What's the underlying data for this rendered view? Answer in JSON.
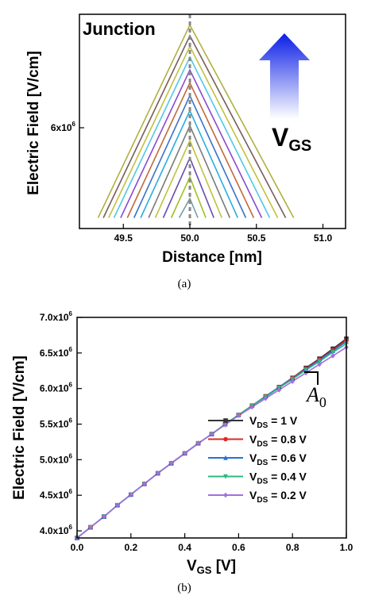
{
  "chart_data": [
    {
      "type": "line",
      "caption": "(a)",
      "annotation": "Junction",
      "arrow_label": "V",
      "arrow_label_sub": "GS",
      "xlabel": "Distance [nm]",
      "ylabel": "Electric Field [V/cm]",
      "xlim": [
        49.17,
        51.17
      ],
      "xticks": [
        "49.5",
        "50.0",
        "50.5",
        "51.0"
      ],
      "ytick_label": {
        "base": "6x10",
        "exp": "6"
      },
      "junction_x": 50.0,
      "series_colors": [
        "#6e9ea8",
        "#a0c020",
        "#6a4ab0",
        "#c0c040",
        "#7a7a7a",
        "#2aaedd",
        "#3a72c8",
        "#c06a3a",
        "#8a4ad0",
        "#50c8e8",
        "#c0c040",
        "#7a5a5a",
        "#b0b040"
      ],
      "series": [
        {
          "x": [
            49.92,
            50.0,
            50.06
          ],
          "y": [
            0.05,
            0.14,
            0.05
          ]
        },
        {
          "x": [
            49.86,
            50.0,
            50.12
          ],
          "y": [
            0.05,
            0.24,
            0.05
          ]
        },
        {
          "x": [
            49.8,
            50.0,
            50.18
          ],
          "y": [
            0.05,
            0.33,
            0.05
          ]
        },
        {
          "x": [
            49.74,
            50.0,
            50.24
          ],
          "y": [
            0.05,
            0.41,
            0.05
          ]
        },
        {
          "x": [
            49.69,
            50.0,
            50.3
          ],
          "y": [
            0.05,
            0.48,
            0.05
          ]
        },
        {
          "x": [
            49.63,
            50.0,
            50.36
          ],
          "y": [
            0.05,
            0.55,
            0.05
          ]
        },
        {
          "x": [
            49.58,
            50.0,
            50.42
          ],
          "y": [
            0.05,
            0.62,
            0.05
          ]
        },
        {
          "x": [
            49.53,
            50.0,
            50.48
          ],
          "y": [
            0.05,
            0.68,
            0.05
          ]
        },
        {
          "x": [
            49.48,
            50.0,
            50.54
          ],
          "y": [
            0.05,
            0.74,
            0.05
          ]
        },
        {
          "x": [
            49.43,
            50.0,
            50.6
          ],
          "y": [
            0.05,
            0.8,
            0.05
          ]
        },
        {
          "x": [
            49.39,
            50.0,
            50.66
          ],
          "y": [
            0.05,
            0.85,
            0.05
          ]
        },
        {
          "x": [
            49.35,
            50.0,
            50.72
          ],
          "y": [
            0.05,
            0.9,
            0.05
          ]
        },
        {
          "x": [
            49.31,
            50.0,
            50.78
          ],
          "y": [
            0.05,
            0.95,
            0.05
          ]
        }
      ]
    },
    {
      "type": "line",
      "caption": "(b)",
      "annotation": "A",
      "annotation_sub": "0",
      "xlabel": "V",
      "xlabel_sub": "GS",
      "xlabel_rest": " [V]",
      "ylabel": "Electric Field [V/cm]",
      "xlim": [
        0.0,
        1.0
      ],
      "ylim": [
        3.9,
        7.0
      ],
      "xticks": [
        "0.0",
        "0.2",
        "0.4",
        "0.6",
        "0.8",
        "1.0"
      ],
      "yticks": [
        {
          "v": 4.0,
          "base": "4.0x10",
          "exp": "6"
        },
        {
          "v": 4.5,
          "base": "4.5x10",
          "exp": "6"
        },
        {
          "v": 5.0,
          "base": "5.0x10",
          "exp": "6"
        },
        {
          "v": 5.5,
          "base": "5.5x10",
          "exp": "6"
        },
        {
          "v": 6.0,
          "base": "6.0x10",
          "exp": "6"
        },
        {
          "v": 6.5,
          "base": "6.5x10",
          "exp": "6"
        },
        {
          "v": 7.0,
          "base": "7.0x10",
          "exp": "6"
        }
      ],
      "x": [
        0.0,
        0.05,
        0.1,
        0.15,
        0.2,
        0.25,
        0.3,
        0.35,
        0.4,
        0.45,
        0.5,
        0.55,
        0.6,
        0.65,
        0.7,
        0.75,
        0.8,
        0.85,
        0.9,
        0.95,
        1.0
      ],
      "series": [
        {
          "label_pre": "V",
          "label_sub": "DS",
          "label_post": " = 1 V",
          "color": "#333333",
          "marker": "square",
          "values": [
            3.9,
            4.05,
            4.2,
            4.36,
            4.51,
            4.66,
            4.81,
            4.95,
            5.09,
            5.23,
            5.36,
            5.5,
            5.63,
            5.76,
            5.89,
            6.02,
            6.15,
            6.29,
            6.42,
            6.56,
            6.7
          ]
        },
        {
          "label_pre": "V",
          "label_sub": "DS",
          "label_post": " = 0.8 V",
          "color": "#e02828",
          "marker": "circle",
          "values": [
            3.9,
            4.05,
            4.2,
            4.36,
            4.51,
            4.66,
            4.81,
            4.95,
            5.09,
            5.23,
            5.36,
            5.5,
            5.63,
            5.76,
            5.89,
            6.02,
            6.15,
            6.28,
            6.41,
            6.54,
            6.68
          ]
        },
        {
          "label_pre": "V",
          "label_sub": "DS",
          "label_post": " = 0.6 V",
          "color": "#2a6fd8",
          "marker": "triangle-up",
          "values": [
            3.9,
            4.05,
            4.2,
            4.36,
            4.51,
            4.66,
            4.81,
            4.95,
            5.09,
            5.23,
            5.36,
            5.5,
            5.63,
            5.76,
            5.89,
            6.02,
            6.14,
            6.27,
            6.4,
            6.53,
            6.66
          ]
        },
        {
          "label_pre": "V",
          "label_sub": "DS",
          "label_post": " = 0.4 V",
          "color": "#2eb880",
          "marker": "triangle-down",
          "values": [
            3.9,
            4.05,
            4.2,
            4.36,
            4.51,
            4.66,
            4.81,
            4.95,
            5.09,
            5.23,
            5.36,
            5.5,
            5.63,
            5.76,
            5.88,
            6.01,
            6.13,
            6.26,
            6.38,
            6.51,
            6.63
          ]
        },
        {
          "label_pre": "V",
          "label_sub": "DS",
          "label_post": " = 0.2 V",
          "color": "#a070e0",
          "marker": "diamond",
          "values": [
            3.9,
            4.05,
            4.2,
            4.36,
            4.51,
            4.66,
            4.81,
            4.95,
            5.09,
            5.23,
            5.36,
            5.49,
            5.62,
            5.74,
            5.86,
            5.98,
            6.1,
            6.22,
            6.34,
            6.46,
            6.58
          ]
        }
      ]
    }
  ]
}
